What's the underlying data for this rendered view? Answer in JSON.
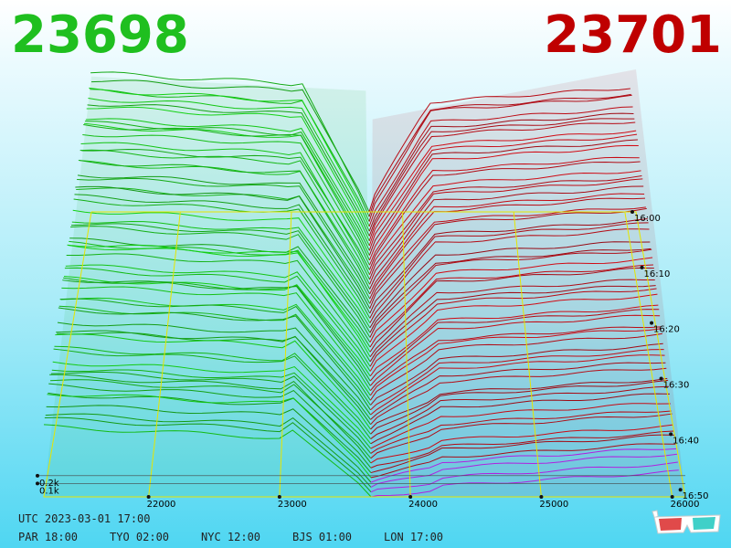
{
  "header": {
    "bid_price": "23698",
    "ask_price": "23701"
  },
  "footer": {
    "utc": "UTC 2023-03-01 17:00",
    "timezones": [
      "PAR 18:00",
      "TYO 02:00",
      "NYC 12:00",
      "BJS 01:00",
      "LON 17:00"
    ]
  },
  "colors": {
    "bid": "#1fbf1f",
    "ask": "#bf0000",
    "grid": "#e6e600",
    "recent": "#b020e0"
  },
  "icons": {
    "glasses": "3d-glasses-icon"
  },
  "chart_data": {
    "type": "area",
    "description_type": "3d order book depth over time",
    "x": {
      "ticks": [
        22000,
        23000,
        24000,
        25000,
        26000
      ],
      "tick_labels": [
        "22000",
        "23000",
        "24000",
        "25000",
        "26000"
      ],
      "range": [
        21200,
        26100
      ],
      "mid": 23699.5
    },
    "y": {
      "ticks": [
        0.1,
        0.2
      ],
      "tick_labels": [
        "0.1k",
        "0.2k"
      ]
    },
    "time": {
      "ticks": [
        "16:00",
        "16:10",
        "16:20",
        "16:30",
        "16:40",
        "16:50"
      ]
    },
    "snapshots": 60,
    "bid_depth_range_k": [
      0.85,
      2.05
    ],
    "ask_depth_range_k": [
      0.1,
      2.05
    ]
  }
}
